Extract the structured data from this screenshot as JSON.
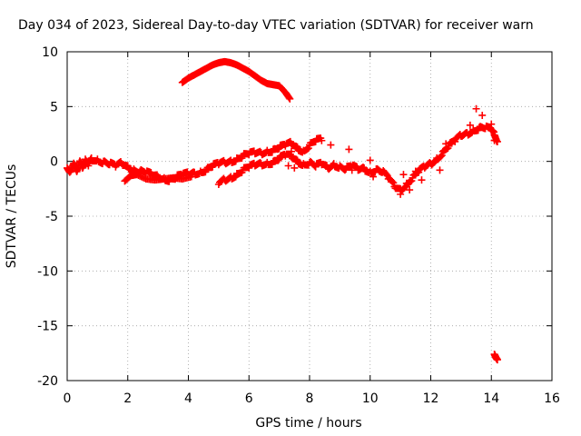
{
  "chart_data": {
    "type": "scatter",
    "title": "Day 034 of 2023, Sidereal Day-to-day VTEC variation (SDTVAR) for receiver warn",
    "xlabel": "GPS time / hours",
    "ylabel": "SDTVAR / TECUs",
    "xlim": [
      0,
      16
    ],
    "ylim": [
      -20,
      10
    ],
    "xticks": [
      0,
      2,
      4,
      6,
      8,
      10,
      12,
      14,
      16
    ],
    "yticks": [
      -20,
      -15,
      -10,
      -5,
      0,
      5,
      10
    ],
    "grid": true,
    "marker": "+",
    "color": "#ff0000",
    "series": [
      {
        "name": "upper-arc",
        "points": [
          [
            3.8,
            7.2
          ],
          [
            4.0,
            7.6
          ],
          [
            4.2,
            7.9
          ],
          [
            4.4,
            8.2
          ],
          [
            4.6,
            8.5
          ],
          [
            4.8,
            8.8
          ],
          [
            5.0,
            9.0
          ],
          [
            5.2,
            9.1
          ],
          [
            5.4,
            9.0
          ],
          [
            5.6,
            8.8
          ],
          [
            5.8,
            8.5
          ],
          [
            6.0,
            8.2
          ],
          [
            6.2,
            7.8
          ],
          [
            6.4,
            7.4
          ],
          [
            6.6,
            7.1
          ],
          [
            6.8,
            7.0
          ],
          [
            7.0,
            6.9
          ],
          [
            7.2,
            6.3
          ],
          [
            7.35,
            5.7
          ]
        ]
      },
      {
        "name": "main-track",
        "points": [
          [
            0.0,
            -0.6
          ],
          [
            0.1,
            -0.9
          ],
          [
            0.2,
            -0.3
          ],
          [
            0.3,
            -0.8
          ],
          [
            0.4,
            -0.1
          ],
          [
            0.5,
            -0.6
          ],
          [
            0.6,
            0.2
          ],
          [
            0.7,
            -0.4
          ],
          [
            0.8,
            0.3
          ],
          [
            1.0,
            0.2
          ],
          [
            1.2,
            0.0
          ],
          [
            1.4,
            -0.3
          ],
          [
            1.6,
            -0.5
          ],
          [
            1.8,
            -0.2
          ],
          [
            2.0,
            -0.4
          ],
          [
            2.2,
            -0.7
          ],
          [
            2.4,
            -0.9
          ],
          [
            2.6,
            -1.1
          ],
          [
            2.8,
            -1.3
          ],
          [
            3.0,
            -1.4
          ],
          [
            3.2,
            -1.5
          ],
          [
            3.4,
            -1.6
          ],
          [
            3.6,
            -1.5
          ],
          [
            3.8,
            -1.3
          ],
          [
            4.0,
            -1.2
          ],
          [
            4.2,
            -1.0
          ],
          [
            4.4,
            -0.9
          ],
          [
            4.6,
            -0.7
          ],
          [
            4.8,
            -0.5
          ],
          [
            5.0,
            -0.3
          ],
          [
            5.2,
            -0.1
          ],
          [
            5.4,
            0.1
          ],
          [
            5.6,
            0.3
          ],
          [
            5.8,
            0.5
          ],
          [
            6.0,
            0.6
          ],
          [
            6.2,
            0.7
          ],
          [
            6.4,
            0.8
          ],
          [
            6.6,
            1.0
          ],
          [
            6.8,
            1.1
          ],
          [
            7.0,
            1.2
          ],
          [
            7.2,
            1.4
          ],
          [
            7.4,
            1.6
          ],
          [
            7.6,
            1.3
          ],
          [
            7.8,
            1.0
          ],
          [
            8.0,
            1.5
          ],
          [
            8.2,
            1.8
          ],
          [
            8.4,
            1.9
          ]
        ]
      },
      {
        "name": "lower-branch",
        "points": [
          [
            1.9,
            -1.8
          ],
          [
            2.1,
            -1.3
          ],
          [
            2.3,
            -1.2
          ],
          [
            2.6,
            -1.6
          ],
          [
            2.9,
            -1.7
          ],
          [
            3.2,
            -1.6
          ],
          [
            3.5,
            -1.5
          ],
          [
            3.8,
            -1.6
          ],
          [
            4.1,
            -1.4
          ]
        ]
      },
      {
        "name": "mid-branch",
        "points": [
          [
            5.0,
            -2.1
          ],
          [
            5.2,
            -1.7
          ],
          [
            5.4,
            -1.4
          ],
          [
            5.6,
            -1.1
          ],
          [
            5.8,
            -0.8
          ],
          [
            6.0,
            -0.6
          ],
          [
            6.2,
            -0.4
          ],
          [
            6.4,
            -0.2
          ],
          [
            6.6,
            -0.1
          ],
          [
            6.8,
            0.0
          ],
          [
            7.0,
            0.2
          ],
          [
            7.2,
            0.5
          ],
          [
            7.4,
            0.4
          ],
          [
            7.6,
            0.1
          ],
          [
            7.8,
            -0.2
          ],
          [
            8.0,
            -0.1
          ],
          [
            8.2,
            -0.5
          ],
          [
            8.4,
            -0.3
          ],
          [
            8.6,
            -0.6
          ],
          [
            8.8,
            -0.2
          ],
          [
            9.0,
            -0.4
          ],
          [
            9.2,
            -0.7
          ],
          [
            9.4,
            -0.5
          ],
          [
            9.6,
            -0.8
          ],
          [
            9.8,
            -0.6
          ],
          [
            10.0,
            -0.9
          ],
          [
            10.2,
            -0.7
          ],
          [
            10.4,
            -1.0
          ],
          [
            10.6,
            -1.6
          ],
          [
            10.8,
            -2.3
          ],
          [
            11.0,
            -2.5
          ],
          [
            11.2,
            -2.0
          ],
          [
            11.4,
            -1.5
          ],
          [
            11.6,
            -1.0
          ],
          [
            11.8,
            -0.6
          ],
          [
            12.0,
            -0.2
          ],
          [
            12.2,
            0.3
          ],
          [
            12.4,
            0.9
          ],
          [
            12.6,
            1.4
          ],
          [
            12.8,
            1.8
          ],
          [
            13.0,
            2.3
          ],
          [
            13.2,
            2.6
          ],
          [
            13.4,
            2.9
          ],
          [
            13.6,
            3.1
          ],
          [
            13.8,
            3.0
          ],
          [
            14.0,
            2.8
          ],
          [
            14.1,
            2.4
          ],
          [
            14.2,
            1.8
          ]
        ]
      },
      {
        "name": "spikes",
        "points": [
          [
            7.3,
            -0.4
          ],
          [
            7.4,
            0.9
          ],
          [
            7.5,
            -0.6
          ],
          [
            8.7,
            1.5
          ],
          [
            8.8,
            -0.3
          ],
          [
            9.3,
            1.1
          ],
          [
            9.4,
            -0.8
          ],
          [
            10.0,
            0.1
          ],
          [
            10.1,
            -1.4
          ],
          [
            10.3,
            -0.9
          ],
          [
            11.0,
            -3.0
          ],
          [
            11.1,
            -1.2
          ],
          [
            11.3,
            -2.6
          ],
          [
            11.5,
            -0.9
          ],
          [
            11.7,
            -1.7
          ],
          [
            12.3,
            -0.8
          ],
          [
            12.5,
            1.6
          ],
          [
            13.3,
            3.3
          ],
          [
            13.5,
            4.8
          ],
          [
            13.7,
            4.2
          ],
          [
            14.0,
            3.4
          ],
          [
            14.1,
            1.9
          ]
        ]
      },
      {
        "name": "outlier",
        "points": [
          [
            14.1,
            -17.6
          ],
          [
            14.15,
            -17.9
          ],
          [
            14.2,
            -18.1
          ]
        ]
      }
    ]
  }
}
